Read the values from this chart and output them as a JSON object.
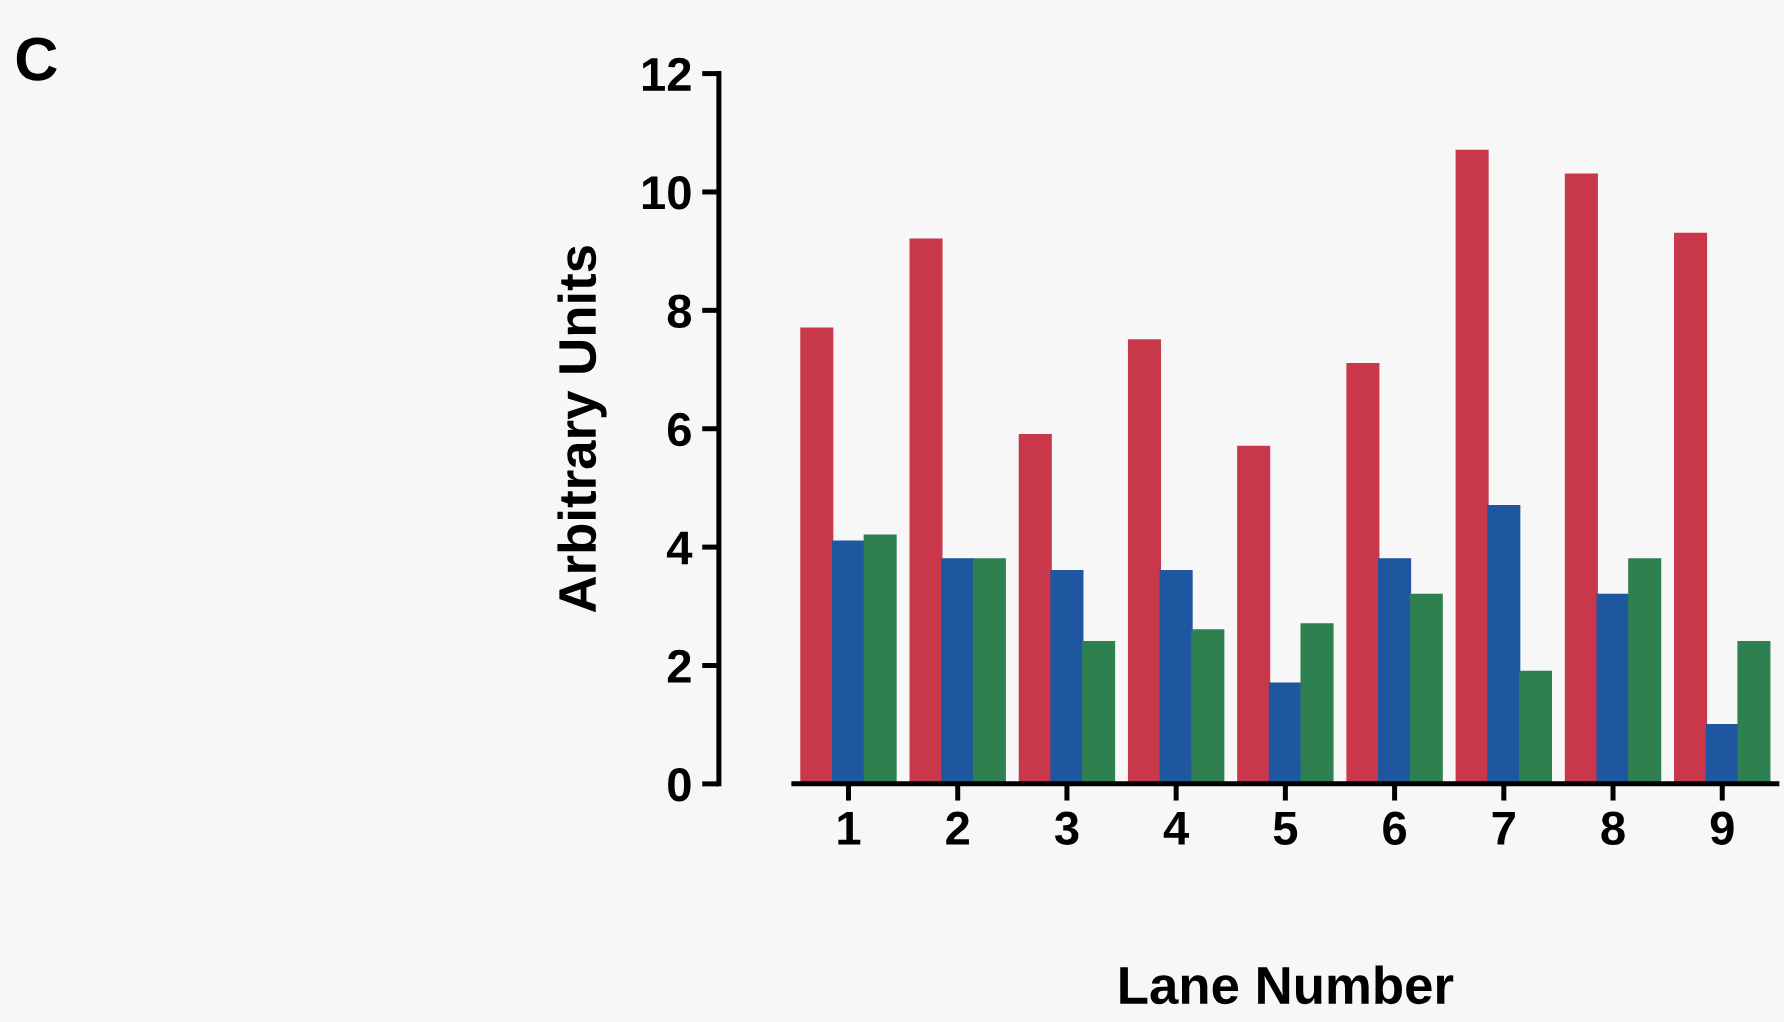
{
  "chart_data": {
    "type": "bar",
    "xlabel": "Lane Number",
    "ylabel": "Arbitrary Units",
    "annotations": [
      "C"
    ],
    "categories": [
      "1",
      "2",
      "3",
      "4",
      "5",
      "6",
      "7",
      "8",
      "9"
    ],
    "series": [
      {
        "color": "#c8384a",
        "values": [
          7.7,
          9.2,
          5.9,
          7.5,
          5.7,
          7.1,
          10.7,
          10.3,
          9.3
        ]
      },
      {
        "color": "#1f56a0",
        "values": [
          4.1,
          3.8,
          3.6,
          3.6,
          1.7,
          3.8,
          4.7,
          3.2,
          1.0
        ]
      },
      {
        "color": "#2e8050",
        "values": [
          4.2,
          3.8,
          2.4,
          2.6,
          2.7,
          3.2,
          1.9,
          3.8,
          2.4
        ]
      }
    ],
    "ylim": [
      0,
      12
    ],
    "yticks": [
      0,
      2,
      4,
      6,
      8,
      10,
      12
    ],
    "grid": false,
    "legend": false
  }
}
